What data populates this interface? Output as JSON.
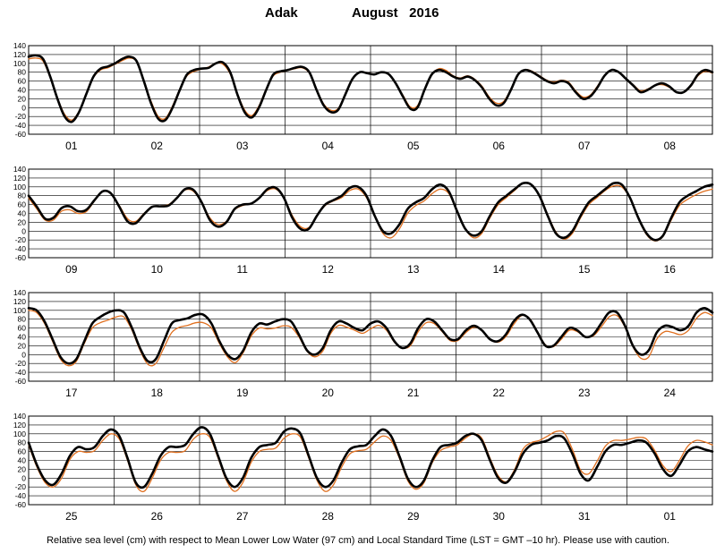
{
  "title": {
    "location": "Adak",
    "month_year": "August   2016"
  },
  "caption": "Relative sea level (cm) with respect to Mean Lower Low Water (97 cm) and Local Standard Time (LST = GMT –10 hr). Please use with caution.",
  "chart_data": {
    "type": "line",
    "ylim": [
      -60,
      140
    ],
    "yticks": [
      -60,
      -40,
      -20,
      0,
      20,
      40,
      60,
      80,
      100,
      120,
      140
    ],
    "grid": true,
    "colors": {
      "observed": "#000000",
      "predicted": "#e07020"
    },
    "panels": [
      {
        "days": [
          "01",
          "02",
          "03",
          "04",
          "05",
          "06",
          "07",
          "08"
        ],
        "series": [
          {
            "key": "observed",
            "values": [
              115,
              118,
              110,
              70,
              20,
              -20,
              -32,
              -10,
              30,
              70,
              88,
              93,
              100,
              110,
              115,
              105,
              60,
              10,
              -25,
              -28,
              0,
              40,
              75,
              85,
              88,
              90,
              100,
              102,
              80,
              30,
              -10,
              -22,
              0,
              40,
              75,
              82,
              85,
              90,
              92,
              80,
              40,
              5,
              -10,
              -5,
              30,
              65,
              80,
              78,
              75,
              80,
              76,
              55,
              25,
              -2,
              0,
              40,
              75,
              85,
              80,
              70,
              65,
              70,
              62,
              45,
              20,
              5,
              10,
              40,
              75,
              85,
              80,
              70,
              60,
              55,
              60,
              55,
              35,
              20,
              25,
              45,
              72,
              85,
              80,
              65,
              50,
              35,
              40,
              50,
              55,
              48,
              35,
              35,
              50,
              75,
              85,
              80
            ]
          },
          {
            "key": "predicted",
            "values": [
              110,
              112,
              105,
              68,
              22,
              -15,
              -28,
              -8,
              32,
              68,
              85,
              90,
              98,
              106,
              112,
              104,
              62,
              15,
              -20,
              -24,
              4,
              42,
              72,
              82,
              87,
              92,
              100,
              98,
              76,
              32,
              -5,
              -18,
              4,
              42,
              72,
              80,
              84,
              88,
              90,
              78,
              42,
              8,
              -6,
              -2,
              32,
              66,
              80,
              79,
              76,
              80,
              75,
              55,
              28,
              2,
              4,
              42,
              75,
              88,
              84,
              72,
              67,
              72,
              64,
              48,
              24,
              10,
              14,
              42,
              75,
              86,
              82,
              72,
              62,
              58,
              62,
              58,
              38,
              24,
              28,
              48,
              72,
              85,
              80,
              65,
              52,
              38,
              42,
              50,
              52,
              46,
              35,
              34,
              48,
              72,
              82,
              78
            ]
          }
        ]
      },
      {
        "days": [
          "09",
          "10",
          "11",
          "12",
          "13",
          "14",
          "15",
          "16"
        ],
        "series": [
          {
            "key": "observed",
            "values": [
              80,
              55,
              28,
              30,
              52,
              56,
              45,
              48,
              70,
              90,
              85,
              55,
              22,
              18,
              38,
              55,
              56,
              58,
              75,
              95,
              93,
              65,
              25,
              10,
              20,
              50,
              60,
              62,
              75,
              95,
              98,
              75,
              30,
              5,
              5,
              35,
              60,
              70,
              80,
              98,
              100,
              80,
              35,
              0,
              -5,
              15,
              50,
              65,
              75,
              95,
              105,
              90,
              45,
              5,
              -10,
              0,
              35,
              65,
              80,
              95,
              108,
              105,
              80,
              35,
              -5,
              -15,
              0,
              35,
              65,
              80,
              95,
              108,
              105,
              75,
              30,
              -5,
              -20,
              -10,
              30,
              65,
              80,
              90,
              100,
              105
            ]
          },
          {
            "key": "predicted",
            "values": [
              75,
              50,
              25,
              25,
              45,
              48,
              40,
              44,
              68,
              90,
              84,
              58,
              28,
              22,
              40,
              55,
              57,
              60,
              76,
              93,
              90,
              65,
              30,
              15,
              22,
              48,
              58,
              62,
              75,
              92,
              95,
              75,
              35,
              10,
              8,
              35,
              58,
              68,
              76,
              92,
              95,
              76,
              35,
              -5,
              -15,
              5,
              40,
              58,
              68,
              85,
              95,
              85,
              45,
              5,
              -15,
              -5,
              30,
              60,
              76,
              92,
              108,
              105,
              82,
              38,
              -2,
              -18,
              -5,
              30,
              60,
              76,
              92,
              102,
              100,
              74,
              28,
              -8,
              -22,
              -12,
              25,
              58,
              72,
              82,
              90,
              95
            ]
          }
        ]
      },
      {
        "days": [
          "17",
          "18",
          "19",
          "20",
          "21",
          "22",
          "23",
          "24"
        ],
        "series": [
          {
            "key": "observed",
            "values": [
              105,
              100,
              75,
              35,
              -5,
              -20,
              -10,
              30,
              70,
              85,
              95,
              100,
              95,
              60,
              15,
              -15,
              -10,
              30,
              70,
              78,
              82,
              90,
              90,
              70,
              30,
              0,
              -10,
              10,
              50,
              70,
              68,
              75,
              80,
              75,
              45,
              10,
              0,
              15,
              55,
              75,
              70,
              60,
              55,
              70,
              75,
              60,
              30,
              15,
              25,
              60,
              80,
              75,
              55,
              35,
              35,
              55,
              65,
              55,
              35,
              30,
              45,
              75,
              90,
              80,
              50,
              20,
              20,
              40,
              60,
              55,
              40,
              45,
              70,
              95,
              95,
              65,
              20,
              0,
              10,
              50,
              65,
              62,
              55,
              65,
              95,
              105,
              95
            ]
          },
          {
            "key": "predicted",
            "values": [
              100,
              95,
              70,
              30,
              -10,
              -25,
              -15,
              25,
              60,
              72,
              78,
              85,
              85,
              55,
              10,
              -22,
              -20,
              15,
              50,
              62,
              66,
              72,
              72,
              60,
              25,
              -5,
              -18,
              5,
              42,
              60,
              58,
              60,
              65,
              62,
              40,
              8,
              -5,
              8,
              48,
              66,
              62,
              55,
              48,
              58,
              66,
              55,
              28,
              15,
              20,
              52,
              72,
              70,
              52,
              32,
              32,
              50,
              62,
              55,
              35,
              28,
              40,
              68,
              88,
              82,
              52,
              22,
              18,
              35,
              55,
              52,
              40,
              42,
              62,
              85,
              88,
              62,
              18,
              -8,
              -5,
              35,
              52,
              50,
              45,
              55,
              82,
              95,
              88
            ]
          }
        ]
      },
      {
        "days": [
          "25",
          "26",
          "27",
          "28",
          "29",
          "30",
          "31",
          "01"
        ],
        "series": [
          {
            "key": "observed",
            "values": [
              80,
              30,
              -5,
              -15,
              10,
              50,
              70,
              65,
              70,
              95,
              110,
              95,
              45,
              -10,
              -20,
              10,
              50,
              70,
              70,
              75,
              100,
              115,
              100,
              50,
              0,
              -20,
              0,
              45,
              70,
              75,
              80,
              105,
              112,
              100,
              50,
              0,
              -20,
              -5,
              35,
              65,
              72,
              75,
              95,
              110,
              95,
              50,
              0,
              -20,
              -5,
              40,
              70,
              75,
              80,
              95,
              100,
              85,
              40,
              0,
              -10,
              15,
              55,
              75,
              80,
              85,
              95,
              90,
              55,
              10,
              -5,
              25,
              60,
              75,
              75,
              80,
              85,
              80,
              55,
              20,
              5,
              30,
              60,
              70,
              65,
              60
            ]
          },
          {
            "key": "predicted",
            "values": [
              75,
              25,
              -10,
              -20,
              0,
              42,
              60,
              58,
              62,
              85,
              100,
              88,
              40,
              -15,
              -30,
              0,
              40,
              58,
              58,
              62,
              88,
              100,
              92,
              45,
              -5,
              -30,
              -10,
              35,
              60,
              65,
              68,
              90,
              100,
              92,
              45,
              -5,
              -30,
              -15,
              25,
              55,
              62,
              65,
              82,
              95,
              85,
              45,
              -5,
              -25,
              -10,
              35,
              62,
              70,
              75,
              90,
              100,
              90,
              45,
              5,
              -8,
              20,
              65,
              80,
              85,
              95,
              105,
              102,
              65,
              18,
              10,
              38,
              72,
              85,
              85,
              88,
              92,
              88,
              62,
              28,
              15,
              40,
              72,
              85,
              82,
              75
            ]
          }
        ]
      }
    ]
  }
}
